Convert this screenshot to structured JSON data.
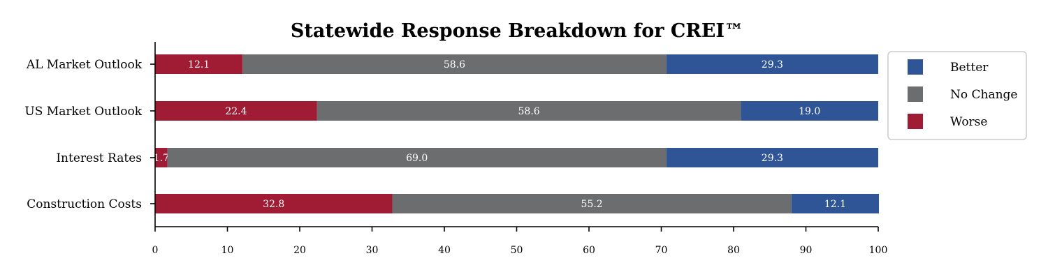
{
  "chart_data": {
    "type": "bar",
    "orientation": "horizontal",
    "stacked": true,
    "title": "Statewide Response Breakdown for CREI™",
    "xlabel": "",
    "ylabel": "",
    "xlim": [
      0,
      100
    ],
    "xticks": [
      0,
      10,
      20,
      30,
      40,
      50,
      60,
      70,
      80,
      90,
      100
    ],
    "grid": false,
    "legend_position": "right",
    "categories": [
      "AL Market Outlook",
      "US Market Outlook",
      "Interest Rates",
      "Construction Costs"
    ],
    "series": [
      {
        "name": "Worse",
        "color": "#A01C34",
        "values": [
          12.1,
          22.4,
          1.7,
          32.8
        ],
        "labels": [
          "12.1",
          "22.4",
          "1.7",
          "32.8"
        ]
      },
      {
        "name": "No Change",
        "color": "#6B6D6E",
        "values": [
          58.6,
          58.6,
          69.0,
          55.2
        ],
        "labels": [
          "58.6",
          "58.6",
          "69.0",
          "55.2"
        ]
      },
      {
        "name": "Better",
        "color": "#2F5597",
        "values": [
          29.3,
          19.0,
          29.3,
          12.1
        ],
        "labels": [
          "29.3",
          "19.0",
          "29.3",
          "12.1"
        ]
      }
    ],
    "legend_order": [
      "Better",
      "No Change",
      "Worse"
    ]
  }
}
